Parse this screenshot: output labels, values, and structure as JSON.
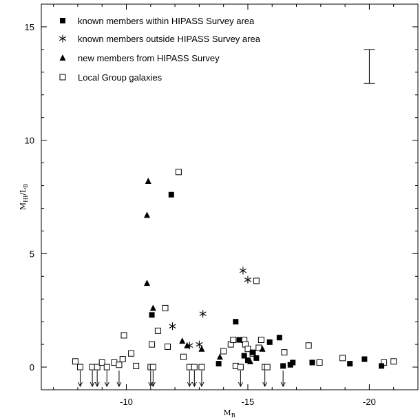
{
  "chart_data": {
    "type": "scatter",
    "title": "",
    "xlabel": "M",
    "xlabel_sub": "B",
    "ylabel": "M",
    "ylabel_sub1": "HI",
    "ylabel_slash": "/L",
    "ylabel_sub2": "B",
    "xlim": [
      -6.5,
      -22.0
    ],
    "ylim": [
      -1.0,
      16.0
    ],
    "x_reversed": true,
    "xticks": [
      -10,
      -15,
      -20
    ],
    "xtick_labels": [
      "-10",
      "-15",
      "-20"
    ],
    "yticks": [
      0,
      5,
      10,
      15
    ],
    "ytick_labels": [
      "0",
      "5",
      "10",
      "15"
    ],
    "grid": false,
    "legend_position": "top-left",
    "error_bar": {
      "x": -20.0,
      "y_low": 12.5,
      "y_high": 14.0
    },
    "series": [
      {
        "name": "known members within HIPASS Survey area",
        "marker": "filled-square",
        "points": [
          {
            "x": -11.05,
            "y": 2.3
          },
          {
            "x": -11.85,
            "y": 7.6
          },
          {
            "x": -14.5,
            "y": 2.0
          },
          {
            "x": -14.65,
            "y": 1.2
          },
          {
            "x": -13.8,
            "y": 0.15
          },
          {
            "x": -14.85,
            "y": 0.5
          },
          {
            "x": -15.0,
            "y": 0.3
          },
          {
            "x": -15.2,
            "y": 0.65
          },
          {
            "x": -15.35,
            "y": 0.4
          },
          {
            "x": -15.9,
            "y": 1.1
          },
          {
            "x": -16.3,
            "y": 1.3
          },
          {
            "x": -16.45,
            "y": 0.05
          },
          {
            "x": -16.75,
            "y": 0.1
          },
          {
            "x": -16.85,
            "y": 0.2
          },
          {
            "x": -17.65,
            "y": 0.2
          },
          {
            "x": -19.2,
            "y": 0.15
          },
          {
            "x": -19.8,
            "y": 0.35
          },
          {
            "x": -20.5,
            "y": 0.05
          }
        ]
      },
      {
        "name": "known members outside HIPASS Survey area",
        "marker": "star",
        "points": [
          {
            "x": -11.9,
            "y": 1.8
          },
          {
            "x": -12.6,
            "y": 0.95
          },
          {
            "x": -13.0,
            "y": 1.0
          },
          {
            "x": -13.15,
            "y": 2.35
          },
          {
            "x": -14.8,
            "y": 4.25
          },
          {
            "x": -15.0,
            "y": 3.85
          }
        ]
      },
      {
        "name": "new members from HIPASS Survey",
        "marker": "filled-triangle",
        "points": [
          {
            "x": -10.9,
            "y": 8.2
          },
          {
            "x": -10.85,
            "y": 6.7
          },
          {
            "x": -10.85,
            "y": 3.7
          },
          {
            "x": -11.1,
            "y": 2.6
          },
          {
            "x": -12.3,
            "y": 1.15
          },
          {
            "x": -12.5,
            "y": 0.95
          },
          {
            "x": -13.1,
            "y": 0.8
          },
          {
            "x": -13.85,
            "y": 0.45
          },
          {
            "x": -15.1,
            "y": 0.25
          },
          {
            "x": -15.6,
            "y": 0.8
          }
        ]
      },
      {
        "name": "Local Group galaxies",
        "marker": "open-square",
        "points": [
          {
            "x": -7.9,
            "y": 0.25
          },
          {
            "x": -8.1,
            "y": 0.0
          },
          {
            "x": -8.6,
            "y": 0.0
          },
          {
            "x": -8.8,
            "y": 0.0
          },
          {
            "x": -9.0,
            "y": 0.2
          },
          {
            "x": -9.2,
            "y": 0.0
          },
          {
            "x": -9.5,
            "y": 0.2
          },
          {
            "x": -9.7,
            "y": 0.1
          },
          {
            "x": -9.85,
            "y": 0.35
          },
          {
            "x": -9.9,
            "y": 1.4
          },
          {
            "x": -10.2,
            "y": 0.6
          },
          {
            "x": -10.4,
            "y": 0.05
          },
          {
            "x": -11.0,
            "y": 0.0
          },
          {
            "x": -11.05,
            "y": 1.0
          },
          {
            "x": -11.1,
            "y": 0.0
          },
          {
            "x": -11.3,
            "y": 1.6
          },
          {
            "x": -11.6,
            "y": 2.6
          },
          {
            "x": -11.7,
            "y": 0.9
          },
          {
            "x": -12.15,
            "y": 8.6
          },
          {
            "x": -12.35,
            "y": 0.45
          },
          {
            "x": -12.6,
            "y": 0.0
          },
          {
            "x": -12.8,
            "y": 0.0
          },
          {
            "x": -13.1,
            "y": 0.0
          },
          {
            "x": -14.0,
            "y": 0.7
          },
          {
            "x": -14.3,
            "y": 1.0
          },
          {
            "x": -14.4,
            "y": 1.2
          },
          {
            "x": -14.5,
            "y": 0.05
          },
          {
            "x": -14.7,
            "y": 0.0
          },
          {
            "x": -14.85,
            "y": 1.2
          },
          {
            "x": -14.9,
            "y": 1.0
          },
          {
            "x": -15.0,
            "y": 0.8
          },
          {
            "x": -15.2,
            "y": 0.6
          },
          {
            "x": -15.35,
            "y": 3.8
          },
          {
            "x": -15.45,
            "y": 0.85
          },
          {
            "x": -15.55,
            "y": 1.2
          },
          {
            "x": -15.7,
            "y": 0.0
          },
          {
            "x": -15.8,
            "y": 0.0
          },
          {
            "x": -16.5,
            "y": 0.65
          },
          {
            "x": -17.5,
            "y": 0.95
          },
          {
            "x": -17.95,
            "y": 0.2
          },
          {
            "x": -18.9,
            "y": 0.4
          },
          {
            "x": -20.6,
            "y": 0.2
          },
          {
            "x": -21.0,
            "y": 0.25
          }
        ]
      }
    ],
    "upper_limits_x": [
      -8.1,
      -8.6,
      -8.8,
      -9.2,
      -9.7,
      -11.0,
      -11.1,
      -12.6,
      -12.8,
      -13.1,
      -14.7,
      -15.7,
      -16.45
    ]
  }
}
